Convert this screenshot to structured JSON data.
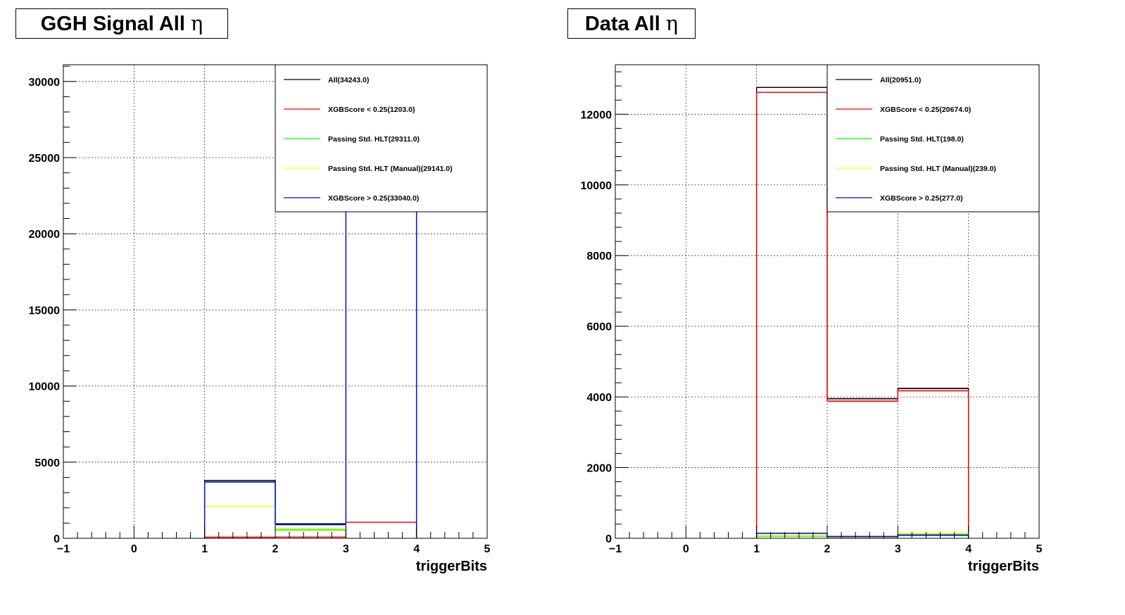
{
  "chart_data": [
    {
      "type": "histogram",
      "title": "GGH Signal All",
      "title_symbol": "η",
      "xlabel": "triggerBits",
      "ylabel": "",
      "xlim": [
        -1,
        5
      ],
      "ylim": [
        0,
        31100
      ],
      "xticks": [
        -1,
        0,
        1,
        2,
        3,
        4,
        5
      ],
      "xtick_labels": [
        "−1",
        "0",
        "1",
        "2",
        "3",
        "4",
        "5"
      ],
      "yticks": [
        0,
        5000,
        10000,
        15000,
        20000,
        25000,
        30000
      ],
      "ytick_labels": [
        "0",
        "5000",
        "10000",
        "15000",
        "20000",
        "25000",
        "30000"
      ],
      "grid": true,
      "legend_position": "top-right",
      "bins": [
        1,
        2,
        3,
        4
      ],
      "series": [
        {
          "name": "All(34243.0)",
          "color": "#000000",
          "values": [
            3800,
            950,
            29493
          ]
        },
        {
          "name": "XGBScore < 0.25(1203.0)",
          "color": "#ff0000",
          "values": [
            70,
            80,
            1053
          ]
        },
        {
          "name": "Passing Std. HLT(29311.0)",
          "color": "#00ff00",
          "values": [
            3700,
            550,
            25061
          ]
        },
        {
          "name": "Passing Std. HLT (Manual)(29141.0)",
          "color": "#ffff00",
          "values": [
            2100,
            650,
            26391
          ]
        },
        {
          "name": "XGBScore > 0.25(33040.0)",
          "color": "#0000ff",
          "values": [
            3700,
            900,
            28440
          ]
        }
      ]
    },
    {
      "type": "histogram",
      "title": "Data All",
      "title_symbol": "η",
      "xlabel": "triggerBits",
      "ylabel": "",
      "xlim": [
        -1,
        5
      ],
      "ylim": [
        0,
        13400
      ],
      "xticks": [
        -1,
        0,
        1,
        2,
        3,
        4,
        5
      ],
      "xtick_labels": [
        "−1",
        "0",
        "1",
        "2",
        "3",
        "4",
        "5"
      ],
      "yticks": [
        0,
        2000,
        4000,
        6000,
        8000,
        10000,
        12000
      ],
      "ytick_labels": [
        "0",
        "2000",
        "4000",
        "6000",
        "8000",
        "10000",
        "12000"
      ],
      "grid": true,
      "legend_position": "top-right",
      "bins": [
        1,
        2,
        3,
        4
      ],
      "series": [
        {
          "name": "All(20951.0)",
          "color": "#000000",
          "values": [
            12760,
            3950,
            4241
          ]
        },
        {
          "name": "XGBScore < 0.25(20674.0)",
          "color": "#ff0000",
          "values": [
            12620,
            3880,
            4174
          ]
        },
        {
          "name": "Passing Std. HLT(198.0)",
          "color": "#00ff00",
          "values": [
            60,
            20,
            118
          ]
        },
        {
          "name": "Passing Std. HLT (Manual)(239.0)",
          "color": "#ffff00",
          "values": [
            80,
            20,
            139
          ]
        },
        {
          "name": "XGBScore > 0.25(277.0)",
          "color": "#0000ff",
          "values": [
            140,
            50,
            87
          ]
        }
      ]
    }
  ]
}
